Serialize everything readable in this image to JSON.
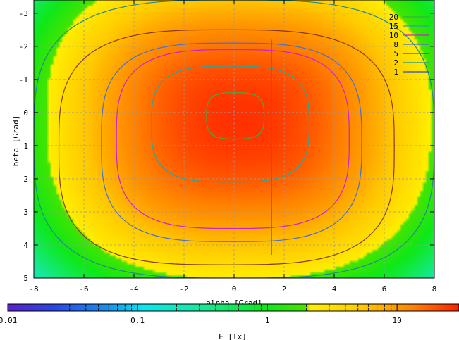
{
  "chart_data": {
    "type": "heatmap",
    "title": "",
    "xlabel": "alpha [Grad]",
    "ylabel": "beta [Grad]",
    "xlim": [
      -8,
      8
    ],
    "ylim": [
      -3.4,
      5
    ],
    "y_axis_inverted": true,
    "x_ticks": [
      "-8",
      "-6",
      "-4",
      "-2",
      "0",
      "2",
      "4",
      "6",
      "8"
    ],
    "y_ticks": [
      "-3",
      "-2",
      "-1",
      "0",
      "1",
      "2",
      "3",
      "4",
      "5"
    ],
    "grid": true,
    "legend_position": "top-right",
    "contour_levels": [
      {
        "label": "20",
        "color": "#3cb044"
      },
      {
        "label": "15",
        "color": "#25a6a0"
      },
      {
        "label": "10",
        "color": "#cc22cc"
      },
      {
        "label": "8",
        "color": "#4a6fc8"
      },
      {
        "label": "5",
        "color": "#8a3a1a"
      },
      {
        "label": "2",
        "color": "#1e8a8a"
      },
      {
        "label": "1",
        "color": "#2a4ac0"
      }
    ],
    "colorbar": {
      "label": "E [lx]",
      "scale": "log",
      "range": [
        0.01,
        30
      ],
      "ticks": [
        "0.01",
        "0.1",
        "1",
        "10"
      ]
    },
    "surface": {
      "peak_value": 26,
      "peak_alpha": 0.2,
      "peak_beta": 0.2,
      "contour_extents": [
        {
          "level": 20,
          "alpha": [
            -1.1,
            1.2
          ],
          "beta": [
            -0.6,
            0.8
          ]
        },
        {
          "level": 15,
          "alpha": [
            -3.3,
            3.0
          ],
          "beta": [
            -1.4,
            2.1
          ]
        },
        {
          "level": 10,
          "alpha": [
            -4.7,
            4.6
          ],
          "beta": [
            -1.9,
            3.5
          ]
        },
        {
          "level": 8,
          "alpha": [
            -5.3,
            5.1
          ],
          "beta": [
            -2.1,
            3.9
          ]
        },
        {
          "level": 5,
          "alpha": [
            -7.0,
            6.4
          ],
          "beta": [
            -2.5,
            4.6
          ]
        },
        {
          "level": 2,
          "alpha": [
            -8.0,
            8.0
          ],
          "beta": [
            -3.4,
            5.0
          ]
        }
      ]
    }
  }
}
